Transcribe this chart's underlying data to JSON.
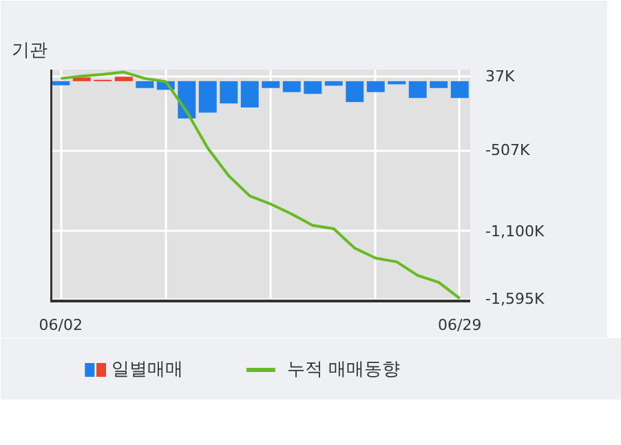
{
  "chart_data": {
    "type": "bar",
    "title": "기관",
    "categories": [
      "06/02",
      null,
      null,
      null,
      null,
      null,
      null,
      null,
      null,
      null,
      null,
      null,
      null,
      null,
      null,
      null,
      null,
      null,
      null,
      "06/29"
    ],
    "series": [
      {
        "name": "일별매매",
        "colors": [
          "#1f7fe8",
          "#e8432d",
          "#e8432d",
          "#e8432d",
          "#1f7fe8",
          "#1f7fe8",
          "#1f7fe8",
          "#1f7fe8",
          "#1f7fe8",
          "#1f7fe8",
          "#1f7fe8",
          "#1f7fe8",
          "#1f7fe8",
          "#1f7fe8",
          "#1f7fe8",
          "#1f7fe8",
          "#1f7fe8",
          "#1f7fe8",
          "#1f7fe8",
          "#1f7fe8"
        ],
        "values": [
          -30,
          27,
          10,
          33,
          -50,
          -63,
          -273,
          -230,
          -163,
          -193,
          -50,
          -80,
          -93,
          -33,
          -153,
          -80,
          -23,
          -123,
          -50,
          -123
        ]
      },
      {
        "name": "누적 매매동향",
        "type": "line",
        "color": "#66bb22",
        "values": [
          20,
          37,
          50,
          67,
          20,
          -3,
          -223,
          -490,
          -693,
          -840,
          -900,
          -973,
          -1056,
          -1080,
          -1223,
          -1296,
          -1323,
          -1423,
          -1473,
          -1590
        ]
      }
    ],
    "ylim": [
      -1610,
      85
    ],
    "yticks": [
      {
        "value": 37,
        "label": "37K"
      },
      {
        "value": -507,
        "label": "-507K"
      },
      {
        "value": -1100,
        "label": "-1,100K"
      },
      {
        "value": -1595,
        "label": "-1,595K"
      }
    ],
    "grid": true,
    "legend": "bottom"
  }
}
